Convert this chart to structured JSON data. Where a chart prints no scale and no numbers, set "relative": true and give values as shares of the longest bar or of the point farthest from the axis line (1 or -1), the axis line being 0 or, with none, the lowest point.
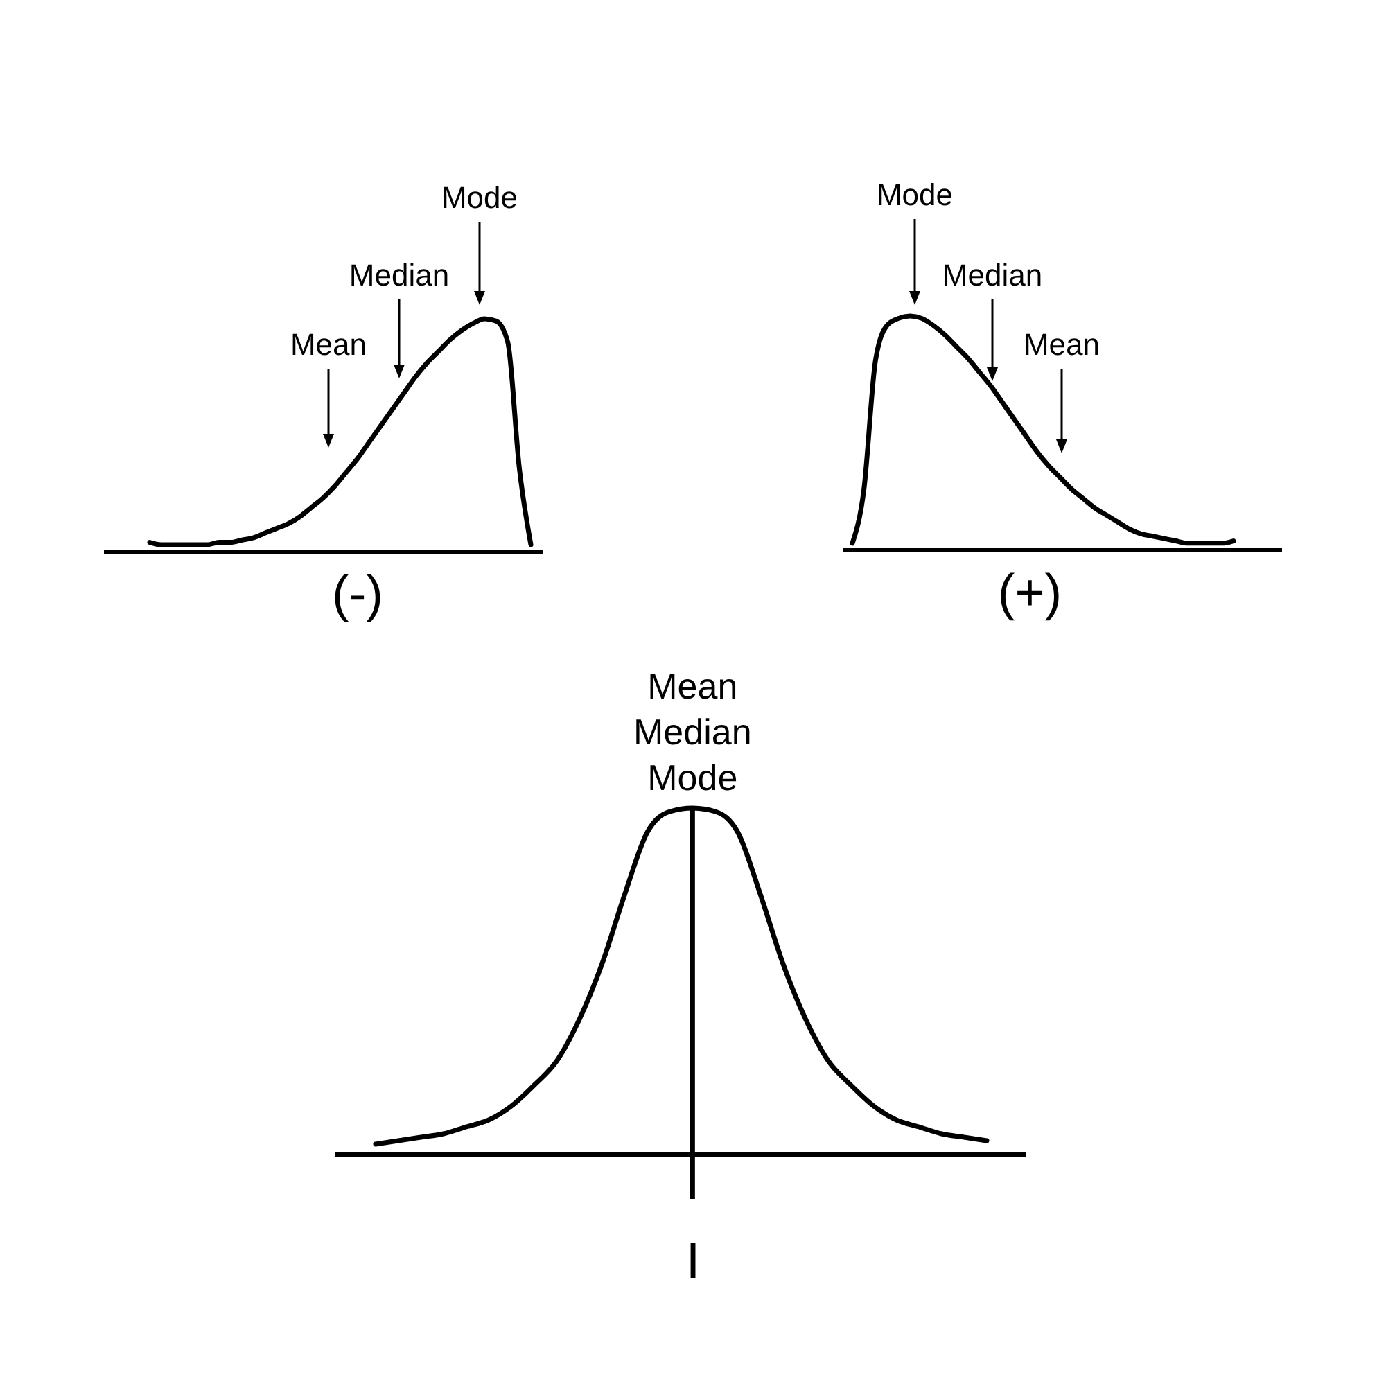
{
  "chart_data": [
    {
      "type": "line",
      "relative": true,
      "xlabel": "(-)",
      "categories": [
        null,
        null,
        null,
        null,
        null,
        null,
        null,
        null,
        null,
        null,
        null,
        null,
        null,
        null,
        null,
        null,
        null,
        null,
        null,
        null,
        null,
        null,
        null,
        null,
        null,
        null,
        null,
        null,
        null,
        null,
        null,
        null,
        null,
        null
      ],
      "series": [
        {
          "color": "#000000",
          "values": [
            0.04,
            0.03,
            0.03,
            0.03,
            0.03,
            0.03,
            0.04,
            0.04,
            0.05,
            0.06,
            0.08,
            0.1,
            0.12,
            0.15,
            0.19,
            0.23,
            0.28,
            0.34,
            0.4,
            0.47,
            0.54,
            0.61,
            0.68,
            0.75,
            0.81,
            0.86,
            0.91,
            0.95,
            0.98,
            1,
            0.99,
            0.9,
            0.36,
            0.03
          ]
        }
      ],
      "annotations": [
        "Mean",
        "Median",
        "Mode"
      ]
    },
    {
      "type": "line",
      "relative": true,
      "xlabel": "(+)",
      "categories": [
        null,
        null,
        null,
        null,
        null,
        null,
        null,
        null,
        null,
        null,
        null,
        null,
        null,
        null,
        null,
        null,
        null,
        null,
        null,
        null,
        null,
        null,
        null,
        null,
        null,
        null,
        null,
        null,
        null,
        null,
        null,
        null,
        null,
        null
      ],
      "series": [
        {
          "color": "#000000",
          "values": [
            0.03,
            0.26,
            0.81,
            0.96,
            0.99,
            1,
            0.99,
            0.96,
            0.92,
            0.87,
            0.82,
            0.76,
            0.7,
            0.63,
            0.56,
            0.49,
            0.42,
            0.36,
            0.31,
            0.26,
            0.22,
            0.18,
            0.15,
            0.12,
            0.09,
            0.07,
            0.06,
            0.05,
            0.04,
            0.03,
            0.03,
            0.03,
            0.03,
            0.04
          ]
        }
      ],
      "annotations": [
        "Mode",
        "Median",
        "Mean"
      ]
    },
    {
      "type": "line",
      "relative": true,
      "xlabel": "I",
      "categories": [
        null,
        null,
        null,
        null,
        null,
        null,
        null,
        null,
        null,
        null,
        null,
        null,
        null,
        null,
        null,
        null,
        null,
        null,
        null,
        null,
        null,
        null,
        null,
        null,
        null,
        null,
        null,
        null
      ],
      "series": [
        {
          "color": "#000000",
          "values": [
            0.03,
            0.04,
            0.05,
            0.06,
            0.08,
            0.1,
            0.14,
            0.2,
            0.27,
            0.39,
            0.55,
            0.75,
            0.93,
            0.99,
            1,
            0.99,
            0.93,
            0.75,
            0.55,
            0.39,
            0.27,
            0.2,
            0.14,
            0.1,
            0.08,
            0.06,
            0.05,
            0.04
          ]
        }
      ],
      "ref_lines": [
        {
          "axis": "x",
          "label": "Mean Median Mode"
        }
      ]
    }
  ]
}
